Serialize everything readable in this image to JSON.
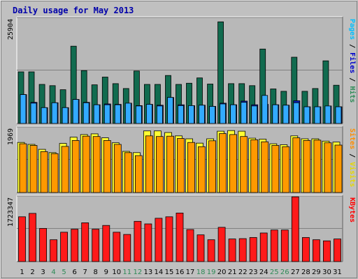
{
  "chart_data": {
    "type": "bar",
    "title": "Daily usage for May 2013",
    "categories": [
      "1",
      "2",
      "3",
      "4",
      "5",
      "6",
      "7",
      "8",
      "9",
      "10",
      "11",
      "12",
      "13",
      "14",
      "15",
      "16",
      "17",
      "18",
      "19",
      "20",
      "21",
      "22",
      "23",
      "24",
      "25",
      "26",
      "27",
      "28",
      "29",
      "30",
      "31"
    ],
    "weekend_days": [
      "4",
      "5",
      "11",
      "12",
      "18",
      "19",
      "25",
      "26"
    ],
    "panels": [
      {
        "id": "top",
        "max_label": "25904",
        "ymax": 25904,
        "grid": [
          0.5
        ],
        "side_labels": [
          {
            "text": "Pages",
            "color": "#00bfff"
          },
          {
            "text": " / ",
            "color": "#000000"
          },
          {
            "text": "Files",
            "color": "#0000cc"
          },
          {
            "text": " / ",
            "color": "#000000"
          },
          {
            "text": "Hits",
            "color": "#2e8b57"
          }
        ],
        "series": [
          {
            "name": "Hits",
            "color": "#116b4f",
            "values": [
              12700,
              12700,
              9600,
              9300,
              8300,
              19000,
              13000,
              9500,
              11400,
              9800,
              8600,
              12900,
              9600,
              9600,
              11800,
              9600,
              9900,
              11200,
              9700,
              25000,
              9800,
              9800,
              9300,
              18300,
              8500,
              7900,
              16300,
              7900,
              8600,
              15400,
              9400
            ]
          },
          {
            "name": "Files",
            "color": "#0a1fb5",
            "values": [
              7100,
              5200,
              3900,
              5100,
              3900,
              5900,
              5200,
              4600,
              4800,
              4700,
              5000,
              4400,
              4700,
              4500,
              6400,
              4600,
              4400,
              4500,
              4200,
              5000,
              4600,
              5500,
              4600,
              4700,
              4600,
              4500,
              5600,
              4100,
              4100,
              4300,
              4100
            ]
          },
          {
            "name": "Pages",
            "color": "#33aaff",
            "values": [
              7100,
              5000,
              3900,
              5100,
              3900,
              5900,
              5100,
              4600,
              4600,
              4600,
              5000,
              4300,
              4700,
              4300,
              6400,
              4400,
              4400,
              4500,
              4200,
              4800,
              4600,
              5200,
              4300,
              6900,
              4600,
              4500,
              5100,
              4100,
              4100,
              4300,
              4100
            ]
          }
        ]
      },
      {
        "id": "middle",
        "max_label": "1969",
        "ymax": 1969,
        "grid": [
          0.5
        ],
        "side_labels": [
          {
            "text": "Sites",
            "color": "#ff8c00"
          },
          {
            "text": " / ",
            "color": "#000000"
          },
          {
            "text": "Visits",
            "color": "#e6d800"
          }
        ],
        "series": [
          {
            "name": "Visits",
            "color": "#ffff33",
            "values": [
              1520,
              1460,
              1310,
              1210,
              1490,
              1680,
              1760,
              1780,
              1660,
              1510,
              1250,
              1210,
              1870,
              1870,
              1820,
              1720,
              1630,
              1500,
              1630,
              1860,
              1880,
              1860,
              1650,
              1620,
              1480,
              1450,
              1720,
              1630,
              1630,
              1560,
              1530
            ]
          },
          {
            "name": "Sites",
            "color": "#ff9900",
            "values": [
              1480,
              1430,
              1240,
              1180,
              1400,
              1580,
              1710,
              1700,
              1580,
              1460,
              1210,
              1120,
              1720,
              1700,
              1710,
              1640,
              1520,
              1390,
              1570,
              1790,
              1760,
              1700,
              1600,
              1540,
              1430,
              1390,
              1660,
              1580,
              1590,
              1510,
              1440
            ]
          }
        ]
      },
      {
        "id": "bottom",
        "max_label": "1723347",
        "ymax": 1723347,
        "grid": [
          0.5
        ],
        "side_labels": [
          {
            "text": "KBytes",
            "color": "#ff0000"
          }
        ],
        "series": [
          {
            "name": "KBytes",
            "color": "#ff1a1a",
            "values": [
              1190000,
              1280000,
              880000,
              580000,
              780000,
              860000,
              1030000,
              860000,
              960000,
              780000,
              720000,
              1070000,
              1000000,
              1150000,
              1190000,
              1290000,
              850000,
              710000,
              580000,
              910000,
              600000,
              610000,
              640000,
              760000,
              840000,
              840000,
              1720000,
              640000,
              580000,
              550000,
              600000
            ]
          }
        ]
      }
    ]
  }
}
